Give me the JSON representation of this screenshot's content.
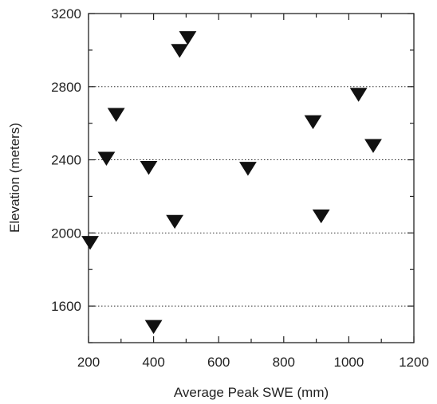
{
  "chart_data": {
    "type": "scatter",
    "xlabel": "Average Peak SWE (mm)",
    "ylabel": "Elevation (meters)",
    "xlim": [
      200,
      1200
    ],
    "ylim": [
      1400,
      3200
    ],
    "xticks": [
      200,
      400,
      600,
      800,
      1000,
      1200
    ],
    "yticks": [
      1600,
      2000,
      2400,
      2800,
      3200
    ],
    "grid": "horizontal dotted at 1600, 2000, 2400, 2800",
    "marker": "downward-triangle",
    "marker_color": "#111111",
    "series": [
      {
        "points": [
          {
            "x": 205,
            "y": 1950
          },
          {
            "x": 255,
            "y": 2410
          },
          {
            "x": 285,
            "y": 2650
          },
          {
            "x": 385,
            "y": 2360
          },
          {
            "x": 400,
            "y": 1490
          },
          {
            "x": 465,
            "y": 2065
          },
          {
            "x": 480,
            "y": 3000
          },
          {
            "x": 505,
            "y": 3070
          },
          {
            "x": 690,
            "y": 2355
          },
          {
            "x": 890,
            "y": 2610
          },
          {
            "x": 915,
            "y": 2095
          },
          {
            "x": 1030,
            "y": 2760
          },
          {
            "x": 1075,
            "y": 2480
          }
        ]
      }
    ]
  }
}
